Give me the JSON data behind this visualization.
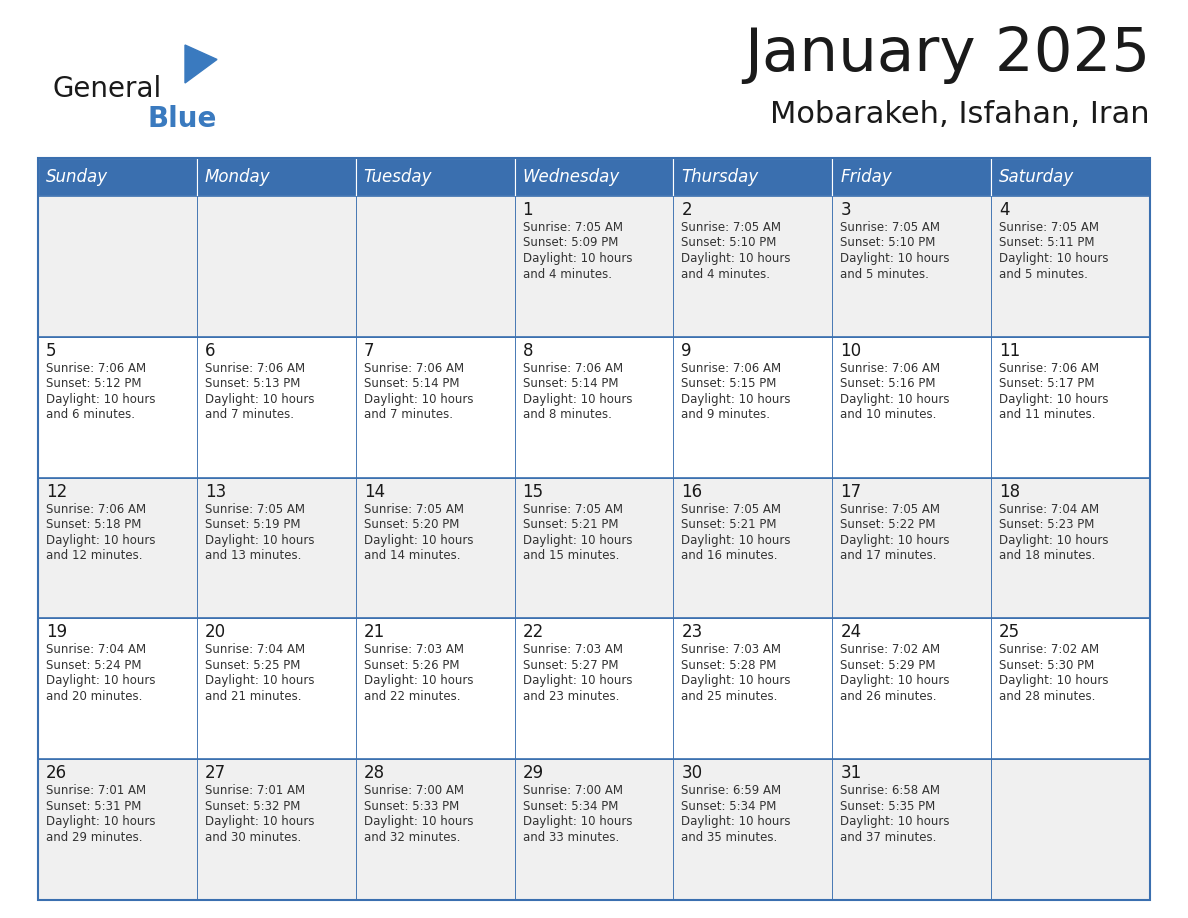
{
  "title": "January 2025",
  "subtitle": "Mobarakeh, Isfahan, Iran",
  "days_of_week": [
    "Sunday",
    "Monday",
    "Tuesday",
    "Wednesday",
    "Thursday",
    "Friday",
    "Saturday"
  ],
  "header_bg": "#3a6faf",
  "header_text": "#ffffff",
  "cell_bg_odd": "#f0f0f0",
  "cell_bg_even": "#ffffff",
  "border_color": "#3a6faf",
  "text_color": "#333333",
  "day_num_color": "#1a1a1a",
  "logo_general_color": "#1a1a1a",
  "logo_blue_color": "#3a7abf",
  "logo_triangle_color": "#3a7abf",
  "calendar_data": [
    [
      null,
      null,
      null,
      {
        "day": "1",
        "sunrise": "7:05 AM",
        "sunset": "5:09 PM",
        "daylight_h": "Daylight: 10 hours",
        "daylight_m": "and 4 minutes."
      },
      {
        "day": "2",
        "sunrise": "7:05 AM",
        "sunset": "5:10 PM",
        "daylight_h": "Daylight: 10 hours",
        "daylight_m": "and 4 minutes."
      },
      {
        "day": "3",
        "sunrise": "7:05 AM",
        "sunset": "5:10 PM",
        "daylight_h": "Daylight: 10 hours",
        "daylight_m": "and 5 minutes."
      },
      {
        "day": "4",
        "sunrise": "7:05 AM",
        "sunset": "5:11 PM",
        "daylight_h": "Daylight: 10 hours",
        "daylight_m": "and 5 minutes."
      }
    ],
    [
      {
        "day": "5",
        "sunrise": "7:06 AM",
        "sunset": "5:12 PM",
        "daylight_h": "Daylight: 10 hours",
        "daylight_m": "and 6 minutes."
      },
      {
        "day": "6",
        "sunrise": "7:06 AM",
        "sunset": "5:13 PM",
        "daylight_h": "Daylight: 10 hours",
        "daylight_m": "and 7 minutes."
      },
      {
        "day": "7",
        "sunrise": "7:06 AM",
        "sunset": "5:14 PM",
        "daylight_h": "Daylight: 10 hours",
        "daylight_m": "and 7 minutes."
      },
      {
        "day": "8",
        "sunrise": "7:06 AM",
        "sunset": "5:14 PM",
        "daylight_h": "Daylight: 10 hours",
        "daylight_m": "and 8 minutes."
      },
      {
        "day": "9",
        "sunrise": "7:06 AM",
        "sunset": "5:15 PM",
        "daylight_h": "Daylight: 10 hours",
        "daylight_m": "and 9 minutes."
      },
      {
        "day": "10",
        "sunrise": "7:06 AM",
        "sunset": "5:16 PM",
        "daylight_h": "Daylight: 10 hours",
        "daylight_m": "and 10 minutes."
      },
      {
        "day": "11",
        "sunrise": "7:06 AM",
        "sunset": "5:17 PM",
        "daylight_h": "Daylight: 10 hours",
        "daylight_m": "and 11 minutes."
      }
    ],
    [
      {
        "day": "12",
        "sunrise": "7:06 AM",
        "sunset": "5:18 PM",
        "daylight_h": "Daylight: 10 hours",
        "daylight_m": "and 12 minutes."
      },
      {
        "day": "13",
        "sunrise": "7:05 AM",
        "sunset": "5:19 PM",
        "daylight_h": "Daylight: 10 hours",
        "daylight_m": "and 13 minutes."
      },
      {
        "day": "14",
        "sunrise": "7:05 AM",
        "sunset": "5:20 PM",
        "daylight_h": "Daylight: 10 hours",
        "daylight_m": "and 14 minutes."
      },
      {
        "day": "15",
        "sunrise": "7:05 AM",
        "sunset": "5:21 PM",
        "daylight_h": "Daylight: 10 hours",
        "daylight_m": "and 15 minutes."
      },
      {
        "day": "16",
        "sunrise": "7:05 AM",
        "sunset": "5:21 PM",
        "daylight_h": "Daylight: 10 hours",
        "daylight_m": "and 16 minutes."
      },
      {
        "day": "17",
        "sunrise": "7:05 AM",
        "sunset": "5:22 PM",
        "daylight_h": "Daylight: 10 hours",
        "daylight_m": "and 17 minutes."
      },
      {
        "day": "18",
        "sunrise": "7:04 AM",
        "sunset": "5:23 PM",
        "daylight_h": "Daylight: 10 hours",
        "daylight_m": "and 18 minutes."
      }
    ],
    [
      {
        "day": "19",
        "sunrise": "7:04 AM",
        "sunset": "5:24 PM",
        "daylight_h": "Daylight: 10 hours",
        "daylight_m": "and 20 minutes."
      },
      {
        "day": "20",
        "sunrise": "7:04 AM",
        "sunset": "5:25 PM",
        "daylight_h": "Daylight: 10 hours",
        "daylight_m": "and 21 minutes."
      },
      {
        "day": "21",
        "sunrise": "7:03 AM",
        "sunset": "5:26 PM",
        "daylight_h": "Daylight: 10 hours",
        "daylight_m": "and 22 minutes."
      },
      {
        "day": "22",
        "sunrise": "7:03 AM",
        "sunset": "5:27 PM",
        "daylight_h": "Daylight: 10 hours",
        "daylight_m": "and 23 minutes."
      },
      {
        "day": "23",
        "sunrise": "7:03 AM",
        "sunset": "5:28 PM",
        "daylight_h": "Daylight: 10 hours",
        "daylight_m": "and 25 minutes."
      },
      {
        "day": "24",
        "sunrise": "7:02 AM",
        "sunset": "5:29 PM",
        "daylight_h": "Daylight: 10 hours",
        "daylight_m": "and 26 minutes."
      },
      {
        "day": "25",
        "sunrise": "7:02 AM",
        "sunset": "5:30 PM",
        "daylight_h": "Daylight: 10 hours",
        "daylight_m": "and 28 minutes."
      }
    ],
    [
      {
        "day": "26",
        "sunrise": "7:01 AM",
        "sunset": "5:31 PM",
        "daylight_h": "Daylight: 10 hours",
        "daylight_m": "and 29 minutes."
      },
      {
        "day": "27",
        "sunrise": "7:01 AM",
        "sunset": "5:32 PM",
        "daylight_h": "Daylight: 10 hours",
        "daylight_m": "and 30 minutes."
      },
      {
        "day": "28",
        "sunrise": "7:00 AM",
        "sunset": "5:33 PM",
        "daylight_h": "Daylight: 10 hours",
        "daylight_m": "and 32 minutes."
      },
      {
        "day": "29",
        "sunrise": "7:00 AM",
        "sunset": "5:34 PM",
        "daylight_h": "Daylight: 10 hours",
        "daylight_m": "and 33 minutes."
      },
      {
        "day": "30",
        "sunrise": "6:59 AM",
        "sunset": "5:34 PM",
        "daylight_h": "Daylight: 10 hours",
        "daylight_m": "and 35 minutes."
      },
      {
        "day": "31",
        "sunrise": "6:58 AM",
        "sunset": "5:35 PM",
        "daylight_h": "Daylight: 10 hours",
        "daylight_m": "and 37 minutes."
      },
      null
    ]
  ]
}
